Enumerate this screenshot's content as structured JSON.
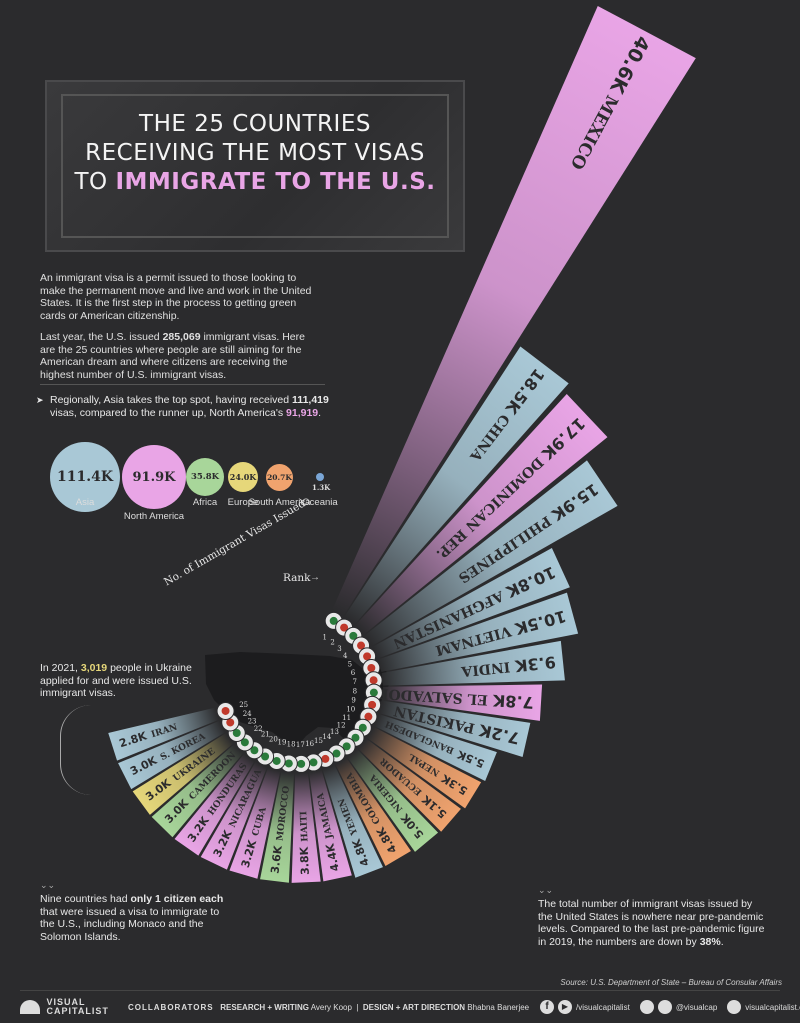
{
  "title": {
    "line1": "THE 25 COUNTRIES",
    "line2": "RECEIVING THE MOST VISAS",
    "line3_pre": "TO ",
    "line3_hl": "IMMIGRATE TO THE U.S."
  },
  "intro": {
    "p1": "An immigrant visa is a permit issued to those looking to make the permanent move and live and work in the United States. It is the first step in the process to getting green cards or American citizenship.",
    "p2_a": "Last year, the U.S. issued ",
    "p2_b": "285,069",
    "p2_c": " immigrant visas. Here are the 25 countries where people are still aiming for the American dream and where citizens are receiving the highest number of U.S. immigrant visas."
  },
  "region_note": {
    "a": "Regionally, Asia takes the top spot, having received ",
    "b": "111,419",
    "c": " visas, compared to the runner up, North America's ",
    "d": "91,919",
    "e": "."
  },
  "regions": [
    {
      "name": "Asia",
      "value": "111.4K",
      "color": "#a9c8d6"
    },
    {
      "name": "North America",
      "value": "91.9K",
      "color": "#e9a5e6"
    },
    {
      "name": "Africa",
      "value": "35.8K",
      "color": "#a8d69a"
    },
    {
      "name": "Europe",
      "value": "24.0K",
      "color": "#e6d77a"
    },
    {
      "name": "South America",
      "value": "20.7K",
      "color": "#f0a36e"
    },
    {
      "name": "Oceania",
      "value": "1.3K",
      "color": "#7aa6d6"
    }
  ],
  "legend": {
    "visas": "No. of Immigrant Visas Issued",
    "rank": "Rank"
  },
  "ukraine_note": {
    "a": "In 2021, ",
    "b": "3,019",
    "c": " people in Ukraine applied for and were issued U.S. immigrant visas."
  },
  "nine_note": {
    "a": "Nine countries had ",
    "b": "only 1 citizen each",
    "c": " that were issued a visa to immigrate to the U.S., including Monaco and the Solomon Islands."
  },
  "total_note": {
    "a": "The total number of immigrant visas issued by the United States is nowhere near pre-pandemic levels. Compared to the last pre-pandemic figure in 2019, the numbers are down by ",
    "b": "38%",
    "c": "."
  },
  "source": "Source: U.S. Department of State – Bureau of Consular Affairs",
  "footer": {
    "brand_1": "VISUAL",
    "brand_2": "CAPITALIST",
    "collab": "COLLABORATORS",
    "research": "RESEARCH + WRITING",
    "research_name": "Avery Koop",
    "design": "DESIGN + ART DIRECTION",
    "design_name": "Bhabna Banerjee",
    "fb": "/visualcapitalist",
    "ig": "@visualcap",
    "web": "visualcapitalist.com"
  },
  "chart_data": {
    "type": "bar",
    "title": "THE 25 COUNTRIES RECEIVING THE MOST VISAS TO IMMIGRATE TO THE U.S.",
    "categories": [
      "Mexico",
      "China",
      "Dominican Rep.",
      "Philippines",
      "Afghanistan",
      "Vietnam",
      "India",
      "El Salvador",
      "Pakistan",
      "Bangladesh",
      "Nepal",
      "Ecuador",
      "Nigeria",
      "Colombia",
      "Yemen",
      "Jamaica",
      "Haiti",
      "Morocco",
      "Cuba",
      "Nicaragua",
      "Honduras",
      "Cameroon",
      "Ukraine",
      "S. Korea",
      "Iran"
    ],
    "labels": [
      "40.6K",
      "18.5K",
      "17.9K",
      "15.9K",
      "10.8K",
      "10.5K",
      "9.3K",
      "7.8K",
      "7.2K",
      "5.5K",
      "5.3K",
      "5.1K",
      "5.0K",
      "4.8K",
      "4.8K",
      "4.4K",
      "3.8K",
      "3.6K",
      "3.2K",
      "3.2K",
      "3.2K",
      "3.0K",
      "3.0K",
      "3.0K",
      "2.8K"
    ],
    "values": [
      40.6,
      18.5,
      17.9,
      15.9,
      10.8,
      10.5,
      9.3,
      7.8,
      7.2,
      5.5,
      5.3,
      5.1,
      5.0,
      4.8,
      4.8,
      4.4,
      3.8,
      3.6,
      3.2,
      3.2,
      3.2,
      3.0,
      3.0,
      3.0,
      2.8
    ],
    "ranks": [
      "1",
      "2",
      "3",
      "4",
      "5",
      "6",
      "7",
      "8",
      "9",
      "10",
      "11",
      "12",
      "13",
      "14",
      "15",
      "16",
      "17",
      "18",
      "19",
      "20",
      "21",
      "22",
      "23",
      "24",
      "25"
    ],
    "colors": [
      "#e9a5e6",
      "#a9c8d6",
      "#e9a5e6",
      "#a9c8d6",
      "#a9c8d6",
      "#a9c8d6",
      "#a9c8d6",
      "#e9a5e6",
      "#a9c8d6",
      "#a9c8d6",
      "#f0a36e",
      "#f0a36e",
      "#a8d69a",
      "#f0a36e",
      "#a9c8d6",
      "#e9a5e6",
      "#e9a5e6",
      "#a8d69a",
      "#e9a5e6",
      "#e9a5e6",
      "#e9a5e6",
      "#a8d69a",
      "#e6d77a",
      "#a9c8d6",
      "#a9c8d6"
    ]
  }
}
